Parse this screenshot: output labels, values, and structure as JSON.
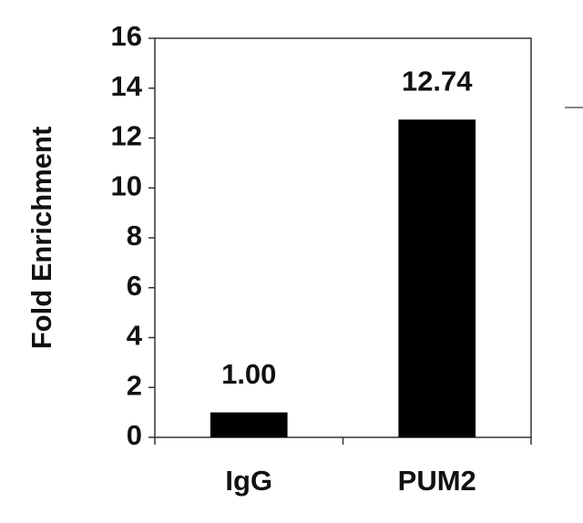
{
  "chart_data": {
    "type": "bar",
    "ylabel": "Fold Enrichment",
    "categories": [
      "IgG",
      "PUM2"
    ],
    "values": [
      1.0,
      12.74
    ],
    "value_labels": [
      "1.00",
      "12.74"
    ],
    "color": "#000000",
    "ylim": [
      0,
      16
    ],
    "yticks": [
      0,
      2,
      4,
      6,
      8,
      10,
      12,
      14,
      16
    ],
    "grid": false
  }
}
